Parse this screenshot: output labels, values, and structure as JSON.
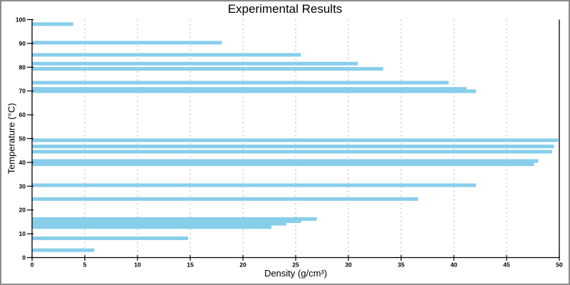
{
  "title": "Experimental Results",
  "colors": {
    "bar": "#87CEEB",
    "grid": "#b0b0b0",
    "axis": "#000000",
    "tick_label": "#000000",
    "frame": "#8c8c8c",
    "background": "#ffffff"
  },
  "chart_data": {
    "type": "bar",
    "orientation": "horizontal",
    "title": "Experimental Results",
    "xlabel": "Density (g/cm³)",
    "ylabel": "Temperature (°C)",
    "xlim": [
      0,
      50
    ],
    "ylim": [
      0,
      100
    ],
    "xticks": [
      0,
      5,
      10,
      15,
      20,
      25,
      30,
      35,
      40,
      45,
      50
    ],
    "yticks": [
      0,
      10,
      20,
      30,
      40,
      50,
      60,
      70,
      80,
      90,
      100
    ],
    "grid": "vertical-dashed",
    "legend": "none",
    "bar_height": 1.5,
    "points": [
      {
        "temperature": 98.1,
        "density": 3.9
      },
      {
        "temperature": 90.3,
        "density": 18.0
      },
      {
        "temperature": 85.2,
        "density": 25.5
      },
      {
        "temperature": 81.5,
        "density": 30.9
      },
      {
        "temperature": 79.3,
        "density": 33.3
      },
      {
        "temperature": 73.5,
        "density": 39.5
      },
      {
        "temperature": 70.9,
        "density": 41.2
      },
      {
        "temperature": 69.9,
        "density": 42.1
      },
      {
        "temperature": 49.3,
        "density": 49.9
      },
      {
        "temperature": 46.7,
        "density": 49.5
      },
      {
        "temperature": 44.5,
        "density": 49.3
      },
      {
        "temperature": 40.6,
        "density": 48.0
      },
      {
        "temperature": 39.2,
        "density": 47.6
      },
      {
        "temperature": 30.4,
        "density": 42.1
      },
      {
        "temperature": 24.6,
        "density": 36.6
      },
      {
        "temperature": 16.2,
        "density": 27.0
      },
      {
        "temperature": 15.3,
        "density": 25.5
      },
      {
        "temperature": 14.2,
        "density": 24.1
      },
      {
        "temperature": 12.8,
        "density": 22.7
      },
      {
        "temperature": 8.1,
        "density": 14.8
      },
      {
        "temperature": 3.1,
        "density": 5.9
      }
    ]
  }
}
